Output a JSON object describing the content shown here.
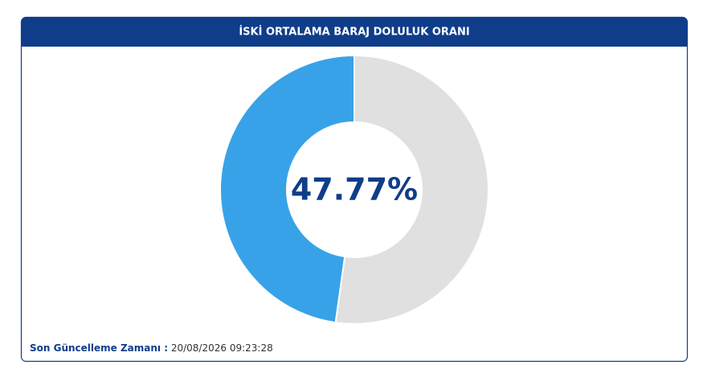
{
  "chart_data": {
    "type": "donut",
    "title": "İSKİ ORTALAMA BARAJ DOLULUK ORANI",
    "values": [
      47.77,
      52.23
    ],
    "value_labels": [
      "47.77%",
      null
    ],
    "colors": [
      "#38a2e8",
      "#e0e0e0"
    ]
  },
  "footer": {
    "label": "Son Güncelleme Zamanı :",
    "value": "20/08/2026 09:23:28"
  }
}
